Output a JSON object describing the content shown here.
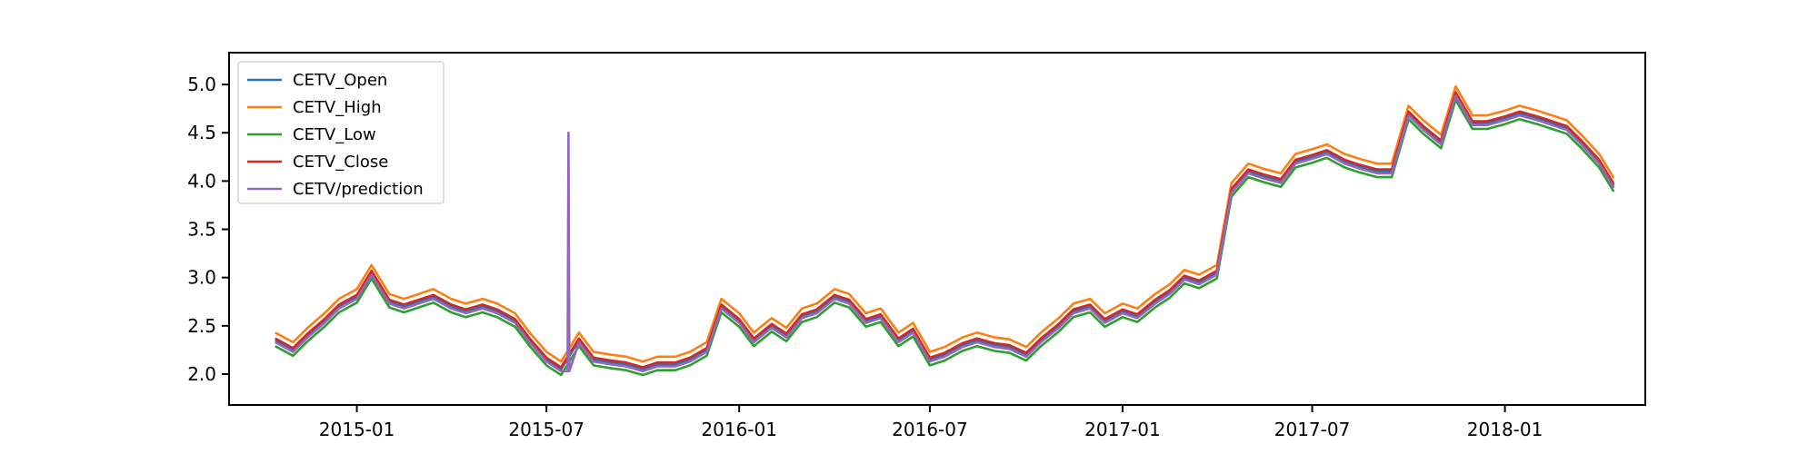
{
  "chart_data": {
    "type": "line",
    "title": "",
    "xlabel": "",
    "ylabel": "",
    "x_range": [
      "2014-09-01",
      "2018-05-15"
    ],
    "ylim": [
      1.68,
      5.33
    ],
    "x_ticks": [
      {
        "date": "2015-01-01",
        "label": "2015-01"
      },
      {
        "date": "2015-07-01",
        "label": "2015-07"
      },
      {
        "date": "2016-01-01",
        "label": "2016-01"
      },
      {
        "date": "2016-07-01",
        "label": "2016-07"
      },
      {
        "date": "2017-01-01",
        "label": "2017-01"
      },
      {
        "date": "2017-07-01",
        "label": "2017-07"
      },
      {
        "date": "2018-01-01",
        "label": "2018-01"
      }
    ],
    "y_ticks": [
      {
        "value": 2.0,
        "label": "2.0"
      },
      {
        "value": 2.5,
        "label": "2.5"
      },
      {
        "value": 3.0,
        "label": "3.0"
      },
      {
        "value": 3.5,
        "label": "3.5"
      },
      {
        "value": 4.0,
        "label": "4.0"
      },
      {
        "value": 4.5,
        "label": "4.5"
      },
      {
        "value": 5.0,
        "label": "5.0"
      }
    ],
    "grid": false,
    "legend_position": "top-left",
    "base_series": {
      "dates": [
        "2014-10-15",
        "2014-11-01",
        "2014-11-15",
        "2014-12-01",
        "2014-12-15",
        "2015-01-01",
        "2015-01-15",
        "2015-02-01",
        "2015-02-15",
        "2015-03-01",
        "2015-03-15",
        "2015-04-01",
        "2015-04-15",
        "2015-05-01",
        "2015-05-15",
        "2015-06-01",
        "2015-06-15",
        "2015-07-01",
        "2015-07-15",
        "2015-08-01",
        "2015-08-15",
        "2015-09-01",
        "2015-09-15",
        "2015-10-01",
        "2015-10-15",
        "2015-11-01",
        "2015-11-15",
        "2015-12-01",
        "2015-12-15",
        "2016-01-01",
        "2016-01-15",
        "2016-02-01",
        "2016-02-15",
        "2016-03-01",
        "2016-03-15",
        "2016-04-01",
        "2016-04-15",
        "2016-05-01",
        "2016-05-15",
        "2016-06-01",
        "2016-06-15",
        "2016-07-01",
        "2016-07-15",
        "2016-08-01",
        "2016-08-15",
        "2016-09-01",
        "2016-09-15",
        "2016-10-01",
        "2016-10-15",
        "2016-11-01",
        "2016-11-15",
        "2016-12-01",
        "2016-12-15",
        "2017-01-01",
        "2017-01-15",
        "2017-02-01",
        "2017-02-15",
        "2017-03-01",
        "2017-03-15",
        "2017-04-01",
        "2017-04-15",
        "2017-05-01",
        "2017-05-15",
        "2017-06-01",
        "2017-06-15",
        "2017-07-01",
        "2017-07-15",
        "2017-08-01",
        "2017-08-15",
        "2017-09-01",
        "2017-09-15",
        "2017-10-01",
        "2017-10-15",
        "2017-11-01",
        "2017-11-15",
        "2017-12-01",
        "2017-12-15",
        "2018-01-01",
        "2018-01-15",
        "2018-02-01",
        "2018-02-15",
        "2018-03-01",
        "2018-03-15",
        "2018-04-01",
        "2018-04-15"
      ],
      "values": [
        2.35,
        2.25,
        2.4,
        2.55,
        2.7,
        2.8,
        3.05,
        2.75,
        2.7,
        2.75,
        2.8,
        2.7,
        2.65,
        2.7,
        2.65,
        2.55,
        2.35,
        2.15,
        2.05,
        2.35,
        2.15,
        2.12,
        2.1,
        2.05,
        2.1,
        2.1,
        2.15,
        2.25,
        2.7,
        2.55,
        2.35,
        2.5,
        2.4,
        2.6,
        2.65,
        2.8,
        2.75,
        2.55,
        2.6,
        2.35,
        2.45,
        2.15,
        2.2,
        2.3,
        2.35,
        2.3,
        2.28,
        2.2,
        2.35,
        2.5,
        2.65,
        2.7,
        2.55,
        2.65,
        2.6,
        2.75,
        2.85,
        3.0,
        2.95,
        3.05,
        3.9,
        4.1,
        4.05,
        4.0,
        4.2,
        4.25,
        4.3,
        4.2,
        4.15,
        4.1,
        4.1,
        4.7,
        4.55,
        4.4,
        4.9,
        4.6,
        4.6,
        4.65,
        4.7,
        4.65,
        4.6,
        4.55,
        4.4,
        4.2,
        3.95
      ]
    },
    "prediction_spike": {
      "date": "2015-07-22",
      "value": 4.5
    },
    "series": [
      {
        "name": "CETV_Open",
        "color": "#1f77b4",
        "offset": 0.0
      },
      {
        "name": "CETV_High",
        "color": "#ff7f0e",
        "offset": 0.08
      },
      {
        "name": "CETV_Low",
        "color": "#2ca02c",
        "offset": -0.06
      },
      {
        "name": "CETV_Close",
        "color": "#d62728",
        "offset": 0.02
      },
      {
        "name": "CETV/prediction",
        "color": "#9467bd",
        "offset": -0.02
      }
    ]
  }
}
